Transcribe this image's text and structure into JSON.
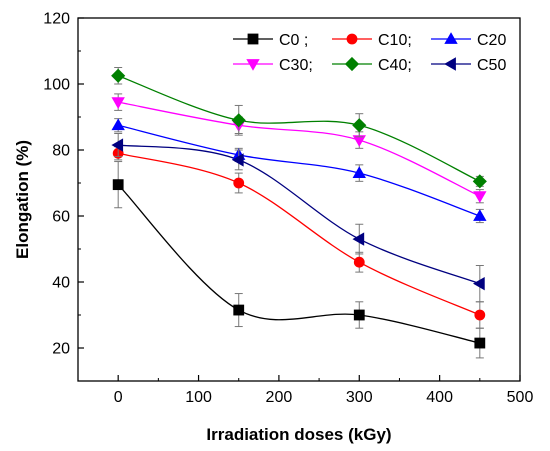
{
  "chart_data": {
    "type": "scatter",
    "xlabel": "Irradiation doses (kGy)",
    "ylabel": "Elongation (%)",
    "xlim": [
      -50,
      500
    ],
    "ylim": [
      10,
      120
    ],
    "x_ticks": [
      "0",
      "100",
      "200",
      "300",
      "400",
      "500"
    ],
    "y_ticks": [
      "20",
      "40",
      "60",
      "80",
      "100",
      "120"
    ],
    "grid": false,
    "legend_position": "top-right",
    "legend_layout": "3 columns x 2 rows",
    "fit_curves": true,
    "error_bars": true,
    "series": [
      {
        "name": "C0 ;",
        "color": "#000000",
        "marker": "square",
        "x": [
          0,
          150,
          300,
          450
        ],
        "y": [
          69.5,
          31.5,
          30.0,
          21.5
        ],
        "error": [
          7.0,
          5.0,
          4.0,
          4.5
        ]
      },
      {
        "name": "C10;",
        "color": "#ff0000",
        "marker": "circle",
        "x": [
          0,
          150,
          300,
          450
        ],
        "y": [
          79.0,
          70.0,
          46.0,
          30.0
        ],
        "error": [
          2.0,
          3.0,
          3.0,
          4.0
        ]
      },
      {
        "name": "C20",
        "color": "#0000ff",
        "marker": "triangle-up",
        "x": [
          0,
          150,
          300,
          450
        ],
        "y": [
          87.5,
          78.5,
          73.0,
          60.0
        ],
        "error": [
          2.0,
          2.0,
          2.5,
          2.0
        ]
      },
      {
        "name": "C30;",
        "color": "#ff00ff",
        "marker": "triangle-down",
        "x": [
          0,
          150,
          300,
          450
        ],
        "y": [
          94.5,
          87.5,
          83.0,
          66.0
        ],
        "error": [
          2.5,
          2.5,
          2.5,
          2.0
        ]
      },
      {
        "name": "C40;",
        "color": "#008000",
        "marker": "diamond",
        "x": [
          0,
          150,
          300,
          450
        ],
        "y": [
          102.5,
          89.0,
          87.5,
          70.5
        ],
        "error": [
          2.5,
          4.5,
          3.5,
          1.5
        ]
      },
      {
        "name": "C50",
        "color": "#000080",
        "marker": "triangle-left",
        "x": [
          0,
          150,
          300,
          450
        ],
        "y": [
          81.5,
          77.0,
          53.0,
          39.5
        ],
        "error": [
          3.5,
          3.0,
          4.5,
          5.5
        ]
      }
    ]
  }
}
